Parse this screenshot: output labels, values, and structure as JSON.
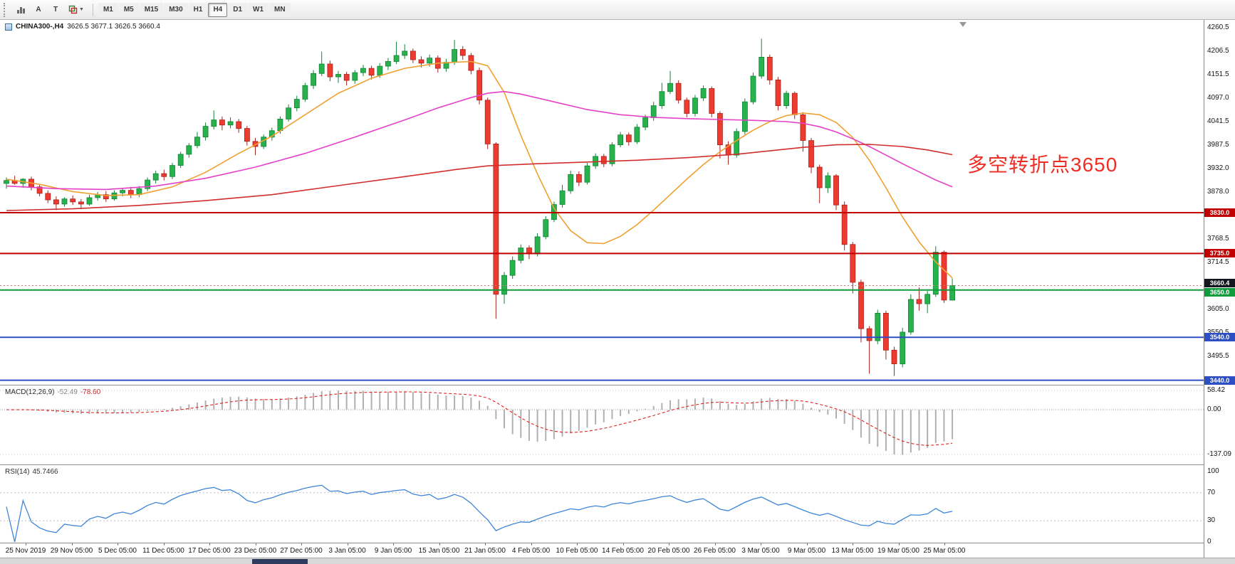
{
  "toolbar": {
    "button_a": "A",
    "button_t": "T",
    "timeframes": [
      "M1",
      "M5",
      "M15",
      "M30",
      "H1",
      "H4",
      "D1",
      "W1",
      "MN"
    ],
    "active_timeframe": "H4"
  },
  "main_chart": {
    "title_symbol": "CHINA300-,H4",
    "title_ohlc": "3626.5 3677.1 3626.5 3660.4",
    "annotation": {
      "text": "多空转折点3650",
      "color": "#ee2e24"
    },
    "price_ticks": [
      "4260.5",
      "4206.5",
      "4151.5",
      "4097.0",
      "4041.5",
      "3987.5",
      "3932.0",
      "3878.0",
      "3824.0",
      "3768.5",
      "3714.5",
      "3660.0",
      "3605.0",
      "3550.5",
      "3495.5",
      "3441.0"
    ],
    "hlines": [
      {
        "price": 3830.0,
        "label": "3830.0",
        "color": "#c00000"
      },
      {
        "price": 3735.0,
        "label": "3735.0",
        "color": "#c00000"
      },
      {
        "price": 3650.0,
        "label": "3650.0",
        "color": "#0f9b3c"
      },
      {
        "price": 3540.0,
        "label": "3540.0",
        "color": "#2e4fc4"
      },
      {
        "price": 3440.0,
        "label": "3440.0",
        "color": "#2e4fc4"
      }
    ],
    "current_price": {
      "value": 3660.4,
      "label": "3660.4",
      "color": "#14161f"
    }
  },
  "macd": {
    "label": "MACD(12,26,9)",
    "value_main": "-52.49",
    "value_signal": "-78.60",
    "ticks": [
      "58.42",
      "0.00",
      "-137.09"
    ],
    "fast": 12,
    "slow": 26,
    "signal": 9
  },
  "rsi": {
    "label": "RSI(14)",
    "value": "45.7466",
    "period": 14,
    "ticks": [
      "100",
      "70",
      "30",
      "0"
    ],
    "levels": [
      70,
      30
    ]
  },
  "colors": {
    "candle_up": "#27b24c",
    "candle_up_border": "#148238",
    "candle_down": "#ef3a2f",
    "candle_down_border": "#a6241c",
    "macd_hist": "#b0b0b0",
    "macd_signal": "#e02020",
    "rsi_line": "#3d85d8",
    "bid_line": "#c08080"
  },
  "chart_data": {
    "type": "candlestick",
    "symbol": "CHINA300-",
    "timeframe": "H4",
    "title": "CHINA300-,H4 3626.5 3677.1 3626.5 3660.4",
    "price_range": [
      3440.0,
      4260.5
    ],
    "x_labels": [
      "25 Nov 2019",
      "29 Nov 05:00",
      "5 Dec 05:00",
      "11 Dec 05:00",
      "17 Dec 05:00",
      "23 Dec 05:00",
      "27 Dec 05:00",
      "3 Jan 05:00",
      "9 Jan 05:00",
      "15 Jan 05:00",
      "21 Jan 05:00",
      "4 Feb 05:00",
      "10 Feb 05:00",
      "14 Feb 05:00",
      "20 Feb 05:00",
      "26 Feb 05:00",
      "3 Mar 05:00",
      "9 Mar 05:00",
      "13 Mar 05:00",
      "19 Mar 05:00",
      "25 Mar 05:00"
    ],
    "candles": [
      [
        3898,
        3912,
        3886,
        3905
      ],
      [
        3905,
        3916,
        3895,
        3898
      ],
      [
        3898,
        3910,
        3888,
        3908
      ],
      [
        3908,
        3914,
        3882,
        3890
      ],
      [
        3890,
        3896,
        3868,
        3875
      ],
      [
        3875,
        3882,
        3852,
        3860
      ],
      [
        3860,
        3868,
        3836,
        3850
      ],
      [
        3850,
        3866,
        3844,
        3862
      ],
      [
        3862,
        3870,
        3848,
        3855
      ],
      [
        3855,
        3862,
        3838,
        3850
      ],
      [
        3850,
        3872,
        3846,
        3865
      ],
      [
        3865,
        3878,
        3858,
        3872
      ],
      [
        3872,
        3880,
        3855,
        3862
      ],
      [
        3862,
        3882,
        3858,
        3876
      ],
      [
        3876,
        3888,
        3868,
        3882
      ],
      [
        3882,
        3890,
        3864,
        3872
      ],
      [
        3872,
        3892,
        3866,
        3886
      ],
      [
        3886,
        3912,
        3880,
        3906
      ],
      [
        3906,
        3928,
        3898,
        3921
      ],
      [
        3921,
        3930,
        3905,
        3914
      ],
      [
        3914,
        3946,
        3908,
        3940
      ],
      [
        3940,
        3972,
        3934,
        3966
      ],
      [
        3966,
        3992,
        3958,
        3986
      ],
      [
        3986,
        4018,
        3980,
        4006
      ],
      [
        4006,
        4040,
        3998,
        4031
      ],
      [
        4031,
        4068,
        4024,
        4046
      ],
      [
        4046,
        4054,
        4022,
        4034
      ],
      [
        4034,
        4052,
        4026,
        4042
      ],
      [
        4042,
        4048,
        4016,
        4026
      ],
      [
        4026,
        4032,
        3986,
        3996
      ],
      [
        3996,
        4004,
        3964,
        3984
      ],
      [
        3984,
        4012,
        3978,
        4006
      ],
      [
        4006,
        4028,
        3998,
        4021
      ],
      [
        4021,
        4054,
        4014,
        4048
      ],
      [
        4048,
        4082,
        4042,
        4074
      ],
      [
        4074,
        4102,
        4066,
        4094
      ],
      [
        4094,
        4132,
        4088,
        4126
      ],
      [
        4126,
        4162,
        4118,
        4154
      ],
      [
        4154,
        4205,
        4148,
        4176
      ],
      [
        4176,
        4184,
        4136,
        4146
      ],
      [
        4146,
        4160,
        4132,
        4152
      ],
      [
        4152,
        4158,
        4126,
        4138
      ],
      [
        4138,
        4162,
        4130,
        4156
      ],
      [
        4156,
        4174,
        4148,
        4166
      ],
      [
        4166,
        4172,
        4140,
        4150
      ],
      [
        4150,
        4178,
        4144,
        4171
      ],
      [
        4171,
        4190,
        4162,
        4182
      ],
      [
        4182,
        4228,
        4176,
        4196
      ],
      [
        4196,
        4222,
        4188,
        4206
      ],
      [
        4206,
        4212,
        4178,
        4186
      ],
      [
        4186,
        4194,
        4168,
        4178
      ],
      [
        4178,
        4198,
        4170,
        4190
      ],
      [
        4190,
        4196,
        4156,
        4166
      ],
      [
        4166,
        4188,
        4158,
        4180
      ],
      [
        4180,
        4232,
        4174,
        4210
      ],
      [
        4210,
        4218,
        4186,
        4196
      ],
      [
        4196,
        4202,
        4152,
        4161
      ],
      [
        4161,
        4168,
        4082,
        4092
      ],
      [
        4092,
        4098,
        3978,
        3990
      ],
      [
        3990,
        3994,
        3583,
        3640
      ],
      [
        3640,
        3692,
        3618,
        3684
      ],
      [
        3684,
        3728,
        3676,
        3719
      ],
      [
        3719,
        3756,
        3712,
        3748
      ],
      [
        3748,
        3754,
        3722,
        3734
      ],
      [
        3734,
        3782,
        3728,
        3774
      ],
      [
        3774,
        3822,
        3768,
        3814
      ],
      [
        3814,
        3856,
        3808,
        3849
      ],
      [
        3849,
        3895,
        3842,
        3881
      ],
      [
        3881,
        3928,
        3874,
        3919
      ],
      [
        3919,
        3926,
        3892,
        3901
      ],
      [
        3901,
        3946,
        3896,
        3939
      ],
      [
        3939,
        3968,
        3932,
        3961
      ],
      [
        3961,
        3967,
        3936,
        3944
      ],
      [
        3944,
        3994,
        3938,
        3988
      ],
      [
        3988,
        4018,
        3982,
        4011
      ],
      [
        4011,
        4017,
        3986,
        3995
      ],
      [
        3995,
        4036,
        3990,
        4029
      ],
      [
        4029,
        4058,
        4022,
        4051
      ],
      [
        4051,
        4088,
        4044,
        4079
      ],
      [
        4079,
        4132,
        4072,
        4112
      ],
      [
        4112,
        4160,
        4106,
        4131
      ],
      [
        4131,
        4138,
        4084,
        4092
      ],
      [
        4092,
        4098,
        4052,
        4061
      ],
      [
        4061,
        4104,
        4054,
        4097
      ],
      [
        4097,
        4126,
        4090,
        4119
      ],
      [
        4119,
        4124,
        4052,
        4061
      ],
      [
        4061,
        4066,
        3956,
        3988
      ],
      [
        3988,
        3996,
        3942,
        3964
      ],
      [
        3964,
        4026,
        3958,
        4019
      ],
      [
        4019,
        4096,
        4012,
        4088
      ],
      [
        4088,
        4156,
        4082,
        4148
      ],
      [
        4148,
        4235,
        4142,
        4192
      ],
      [
        4192,
        4198,
        4128,
        4139
      ],
      [
        4139,
        4146,
        4068,
        4079
      ],
      [
        4079,
        4114,
        4072,
        4108
      ],
      [
        4108,
        4112,
        4048,
        4058
      ],
      [
        4058,
        4064,
        3972,
        3998
      ],
      [
        3998,
        4004,
        3922,
        3936
      ],
      [
        3936,
        3942,
        3852,
        3888
      ],
      [
        3888,
        3924,
        3876,
        3916
      ],
      [
        3916,
        3920,
        3836,
        3848
      ],
      [
        3848,
        3856,
        3742,
        3756
      ],
      [
        3756,
        3762,
        3642,
        3668
      ],
      [
        3668,
        3674,
        3528,
        3560
      ],
      [
        3560,
        3566,
        3455,
        3532
      ],
      [
        3532,
        3604,
        3524,
        3596
      ],
      [
        3596,
        3602,
        3488,
        3510
      ],
      [
        3510,
        3518,
        3450,
        3478
      ],
      [
        3478,
        3562,
        3470,
        3552
      ],
      [
        3552,
        3640,
        3546,
        3628
      ],
      [
        3628,
        3656,
        3602,
        3618
      ],
      [
        3618,
        3648,
        3596,
        3640
      ],
      [
        3640,
        3752,
        3634,
        3738
      ],
      [
        3738,
        3742,
        3620,
        3626.5
      ],
      [
        3626.5,
        3677.1,
        3626.5,
        3660.4
      ]
    ],
    "moving_averages": [
      {
        "name": "ma-fast",
        "color": "#f0a030",
        "points": [
          [
            0,
            3908
          ],
          [
            4,
            3896
          ],
          [
            8,
            3879
          ],
          [
            12,
            3870
          ],
          [
            16,
            3872
          ],
          [
            20,
            3890
          ],
          [
            24,
            3924
          ],
          [
            28,
            3968
          ],
          [
            32,
            4008
          ],
          [
            36,
            4058
          ],
          [
            40,
            4108
          ],
          [
            44,
            4143
          ],
          [
            48,
            4166
          ],
          [
            52,
            4178
          ],
          [
            56,
            4182
          ],
          [
            58,
            4172
          ],
          [
            60,
            4110
          ],
          [
            62,
            4010
          ],
          [
            64,
            3920
          ],
          [
            66,
            3840
          ],
          [
            68,
            3788
          ],
          [
            70,
            3760
          ],
          [
            72,
            3758
          ],
          [
            74,
            3775
          ],
          [
            76,
            3802
          ],
          [
            78,
            3836
          ],
          [
            80,
            3872
          ],
          [
            82,
            3908
          ],
          [
            84,
            3942
          ],
          [
            86,
            3972
          ],
          [
            88,
            3998
          ],
          [
            90,
            4022
          ],
          [
            92,
            4042
          ],
          [
            94,
            4056
          ],
          [
            96,
            4062
          ],
          [
            98,
            4058
          ],
          [
            100,
            4040
          ],
          [
            102,
            4005
          ],
          [
            104,
            3952
          ],
          [
            106,
            3888
          ],
          [
            108,
            3820
          ],
          [
            110,
            3762
          ],
          [
            112,
            3715
          ],
          [
            114,
            3678
          ]
        ]
      },
      {
        "name": "ma-mid",
        "color": "#e540c8",
        "points": [
          [
            0,
            3892
          ],
          [
            6,
            3886
          ],
          [
            12,
            3884
          ],
          [
            18,
            3892
          ],
          [
            24,
            3910
          ],
          [
            30,
            3936
          ],
          [
            36,
            3968
          ],
          [
            42,
            4006
          ],
          [
            48,
            4046
          ],
          [
            52,
            4074
          ],
          [
            56,
            4098
          ],
          [
            58,
            4108
          ],
          [
            60,
            4112
          ],
          [
            62,
            4106
          ],
          [
            66,
            4088
          ],
          [
            70,
            4070
          ],
          [
            74,
            4058
          ],
          [
            78,
            4052
          ],
          [
            82,
            4049
          ],
          [
            86,
            4047
          ],
          [
            90,
            4045
          ],
          [
            94,
            4042
          ],
          [
            96,
            4038
          ],
          [
            98,
            4030
          ],
          [
            100,
            4018
          ],
          [
            102,
            4002
          ],
          [
            104,
            3984
          ],
          [
            106,
            3964
          ],
          [
            108,
            3944
          ],
          [
            110,
            3925
          ],
          [
            112,
            3906
          ],
          [
            114,
            3890
          ]
        ]
      },
      {
        "name": "ma-slow",
        "color": "#d22d2d",
        "points": [
          [
            0,
            3835
          ],
          [
            8,
            3839
          ],
          [
            16,
            3847
          ],
          [
            24,
            3858
          ],
          [
            32,
            3872
          ],
          [
            40,
            3893
          ],
          [
            48,
            3914
          ],
          [
            54,
            3930
          ],
          [
            58,
            3939
          ],
          [
            64,
            3944
          ],
          [
            70,
            3948
          ],
          [
            76,
            3952
          ],
          [
            82,
            3958
          ],
          [
            88,
            3966
          ],
          [
            92,
            3974
          ],
          [
            96,
            3982
          ],
          [
            100,
            3988
          ],
          [
            104,
            3989
          ],
          [
            108,
            3984
          ],
          [
            111,
            3976
          ],
          [
            114,
            3965
          ]
        ]
      }
    ]
  }
}
